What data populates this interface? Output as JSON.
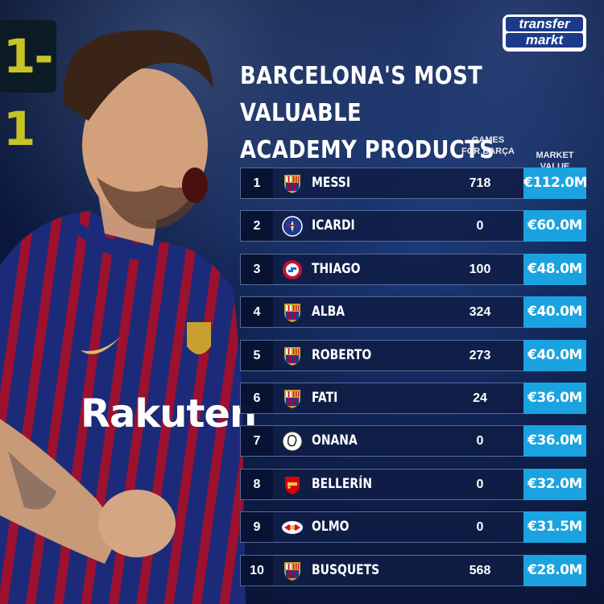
{
  "scoreboard": "1-1",
  "brand": {
    "line1": "transfer",
    "line2": "markt"
  },
  "title": {
    "line1": "BARCELONA'S MOST VALUABLE",
    "line2": "ACADEMY PRODUCTS"
  },
  "columns": {
    "games_line1": "GAMES",
    "games_line2": "FOR BARÇA",
    "value": "MARKET VALUE"
  },
  "shirt_sponsor": "Rakuten",
  "rows": [
    {
      "rank": "1",
      "club": "barcelona-crest",
      "name": "MESSI",
      "games": "718",
      "value": "€112.0M"
    },
    {
      "rank": "2",
      "club": "psg-crest",
      "name": "ICARDI",
      "games": "0",
      "value": "€60.0M"
    },
    {
      "rank": "3",
      "club": "bayern-crest",
      "name": "THIAGO",
      "games": "100",
      "value": "€48.0M"
    },
    {
      "rank": "4",
      "club": "barcelona-crest",
      "name": "ALBA",
      "games": "324",
      "value": "€40.0M"
    },
    {
      "rank": "5",
      "club": "barcelona-crest",
      "name": "ROBERTO",
      "games": "273",
      "value": "€40.0M"
    },
    {
      "rank": "6",
      "club": "barcelona-crest",
      "name": "FATI",
      "games": "24",
      "value": "€36.0M"
    },
    {
      "rank": "7",
      "club": "ajax-crest",
      "name": "ONANA",
      "games": "0",
      "value": "€36.0M"
    },
    {
      "rank": "8",
      "club": "arsenal-crest",
      "name": "BELLERÍN",
      "games": "0",
      "value": "€32.0M"
    },
    {
      "rank": "9",
      "club": "leipzig-crest",
      "name": "OLMO",
      "games": "0",
      "value": "€31.5M"
    },
    {
      "rank": "10",
      "club": "barcelona-crest",
      "name": "BUSQUETS",
      "games": "568",
      "value": "€28.0M"
    }
  ],
  "colors": {
    "accent": "#1aa3e0",
    "background": "#0e1f4a"
  }
}
